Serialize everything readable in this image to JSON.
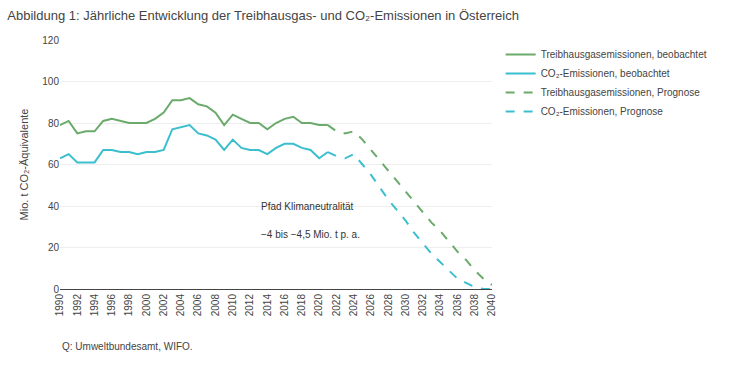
{
  "chart_data": {
    "type": "line",
    "title": "Abbildung 1: Jährliche Entwicklung der Treibhausgas- und CO₂-Emissionen in Österreich",
    "y_label": "Mio. t CO₂-Äquivalente",
    "source": "Q: Umweltbundesamt, WIFO.",
    "annotations": [
      {
        "text": "Pfad Klimaneutralität",
        "x": 2013,
        "y": 36
      },
      {
        "text": "−4 bis −4,5 Mio. t p. a.",
        "x": 2013,
        "y": 30
      }
    ],
    "xlim": [
      1990,
      2040
    ],
    "xticks": [
      1990,
      1992,
      1994,
      1996,
      1998,
      2000,
      2002,
      2004,
      2006,
      2008,
      2010,
      2012,
      2014,
      2016,
      2018,
      2020,
      2022,
      2024,
      2026,
      2028,
      2030,
      2032,
      2034,
      2036,
      2038,
      2040
    ],
    "ylim": [
      0,
      120
    ],
    "yticks": [
      0,
      20,
      40,
      60,
      80,
      100,
      120
    ],
    "grid": "y",
    "legend": "upper right",
    "series": [
      {
        "name": "Treibhausgasemissionen, beobachtet",
        "color": "#6aaa6a",
        "line_style": "solid",
        "x": [
          1990,
          1991,
          1992,
          1993,
          1994,
          1995,
          1996,
          1997,
          1998,
          1999,
          2000,
          2001,
          2002,
          2003,
          2004,
          2005,
          2006,
          2007,
          2008,
          2009,
          2010,
          2011,
          2012,
          2013,
          2014,
          2015,
          2016,
          2017,
          2018,
          2019,
          2020,
          2021
        ],
        "values": [
          79,
          81,
          75,
          76,
          76,
          81,
          82,
          81,
          80,
          80,
          80,
          82,
          85,
          91,
          91,
          92,
          89,
          88,
          85,
          79,
          84,
          82,
          80,
          80,
          77,
          80,
          82,
          83,
          80,
          80,
          79,
          79
        ]
      },
      {
        "name": "CO₂-Emissionen, beobachtet",
        "color": "#3bbfcf",
        "line_style": "solid",
        "x": [
          1990,
          1991,
          1992,
          1993,
          1994,
          1995,
          1996,
          1997,
          1998,
          1999,
          2000,
          2001,
          2002,
          2003,
          2004,
          2005,
          2006,
          2007,
          2008,
          2009,
          2010,
          2011,
          2012,
          2013,
          2014,
          2015,
          2016,
          2017,
          2018,
          2019,
          2020,
          2021
        ],
        "values": [
          63,
          65,
          61,
          61,
          61,
          67,
          67,
          66,
          66,
          65,
          66,
          66,
          67,
          77,
          78,
          79,
          75,
          74,
          72,
          67,
          72,
          68,
          67,
          67,
          65,
          68,
          70,
          70,
          68,
          67,
          63,
          66
        ]
      },
      {
        "name": "Treibhausgasemissionen, Prognose",
        "color": "#6aaa6a",
        "line_style": "dashed",
        "x": [
          2021,
          2022,
          2023,
          2024,
          2025,
          2026,
          2027,
          2028,
          2029,
          2030,
          2031,
          2032,
          2033,
          2034,
          2035,
          2036,
          2037,
          2038,
          2039,
          2040
        ],
        "values": [
          79,
          76,
          75,
          76,
          72,
          67,
          62,
          57,
          52,
          47,
          42,
          37,
          32,
          28,
          23,
          18,
          14,
          9,
          5,
          2
        ]
      },
      {
        "name": "CO₂-Emissionen, Prognose",
        "color": "#3bbfcf",
        "line_style": "dashed",
        "x": [
          2021,
          2022,
          2023,
          2024,
          2025,
          2026,
          2027,
          2028,
          2029,
          2030,
          2031,
          2032,
          2033,
          2034,
          2035,
          2036,
          2037,
          2038,
          2039,
          2040
        ],
        "values": [
          66,
          64,
          63,
          65,
          60,
          55,
          49,
          43,
          38,
          33,
          27,
          22,
          17,
          13,
          9,
          5,
          3,
          1,
          0,
          0
        ]
      }
    ]
  }
}
